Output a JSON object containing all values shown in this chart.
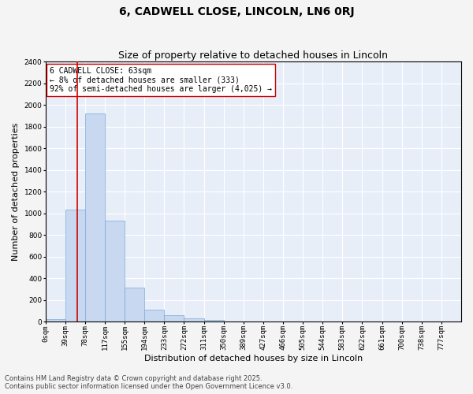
{
  "title1": "6, CADWELL CLOSE, LINCOLN, LN6 0RJ",
  "title2": "Size of property relative to detached houses in Lincoln",
  "xlabel": "Distribution of detached houses by size in Lincoln",
  "ylabel": "Number of detached properties",
  "bin_labels": [
    "0sqm",
    "39sqm",
    "78sqm",
    "117sqm",
    "155sqm",
    "194sqm",
    "233sqm",
    "272sqm",
    "311sqm",
    "350sqm",
    "389sqm",
    "427sqm",
    "466sqm",
    "505sqm",
    "544sqm",
    "583sqm",
    "622sqm",
    "661sqm",
    "700sqm",
    "738sqm",
    "777sqm"
  ],
  "bar_heights": [
    20,
    1030,
    1920,
    930,
    310,
    110,
    55,
    30,
    12,
    0,
    0,
    0,
    0,
    0,
    0,
    0,
    0,
    0,
    0,
    0,
    0
  ],
  "bar_color": "#c8d8f0",
  "bar_edge_color": "#7aa8d8",
  "vline_color": "#cc0000",
  "annotation_text": "6 CADWELL CLOSE: 63sqm\n← 8% of detached houses are smaller (333)\n92% of semi-detached houses are larger (4,025) →",
  "annotation_box_color": "#ffffff",
  "annotation_box_edge": "#cc0000",
  "ylim": [
    0,
    2400
  ],
  "yticks": [
    0,
    200,
    400,
    600,
    800,
    1000,
    1200,
    1400,
    1600,
    1800,
    2000,
    2200,
    2400
  ],
  "fig_background_color": "#f4f4f4",
  "plot_background_color": "#e8eef8",
  "grid_color": "#ffffff",
  "footer1": "Contains HM Land Registry data © Crown copyright and database right 2025.",
  "footer2": "Contains public sector information licensed under the Open Government Licence v3.0.",
  "title1_fontsize": 10,
  "title2_fontsize": 9,
  "xlabel_fontsize": 8,
  "ylabel_fontsize": 8,
  "tick_fontsize": 6.5,
  "annotation_fontsize": 7,
  "footer_fontsize": 6
}
